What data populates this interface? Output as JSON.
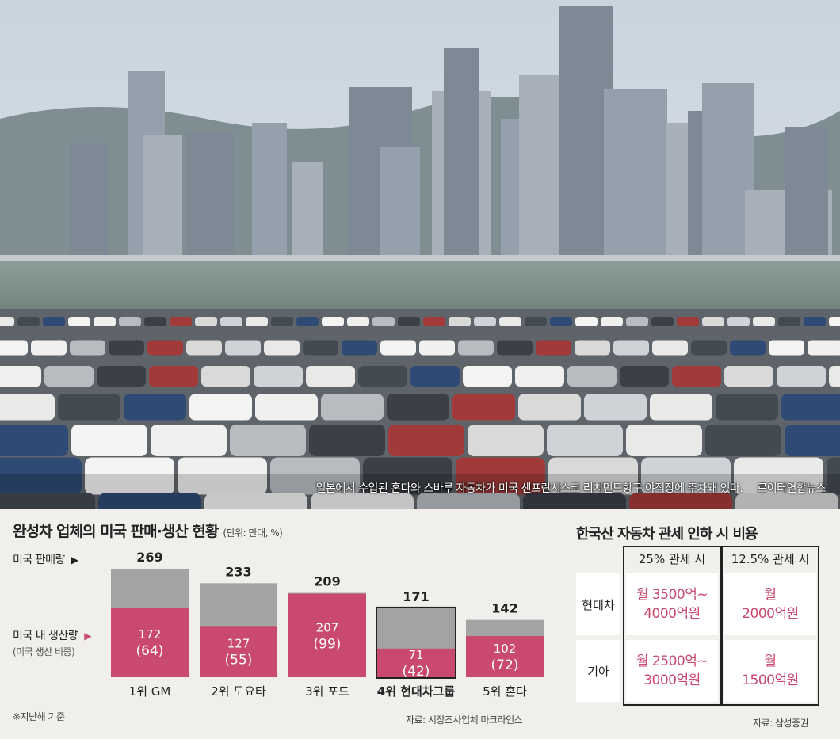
{
  "photo": {
    "caption": "일본에서 수입된 혼다와 스바루 자동차가 미국 샌프란시스코 리치먼드항구 야적장에 주차돼 있다.",
    "credit": "로이터연합뉴스"
  },
  "chart_data": {
    "type": "bar",
    "title": "완성차 업체의 미국 판매·생산 현황",
    "unit": "(단위: 만대, %)",
    "categories": [
      "1위 GM",
      "2위 도요타",
      "3위 포드",
      "4위 현대차그룹",
      "5위 혼다"
    ],
    "series": [
      {
        "name": "미국 판매량",
        "values": [
          269,
          233,
          209,
          171,
          142
        ]
      },
      {
        "name": "미국 내 생산량",
        "values": [
          172,
          127,
          207,
          71,
          102
        ]
      }
    ],
    "production_share": [
      64,
      55,
      99,
      42,
      72
    ],
    "share_labels": [
      "(64)",
      "(55)",
      "(99)",
      "(42)",
      "(72)"
    ],
    "ylim": [
      0,
      269
    ],
    "highlight": "4위 현대차그룹",
    "colors": {
      "sales": "#a3a3a3",
      "production": "#c9496f"
    }
  },
  "legend": {
    "sales_label": "미국 판매량",
    "production_label": "미국 내 생산량",
    "production_sub": "(미국 생산 비중)",
    "arrow": "▶"
  },
  "footnote": "※지난해 기준",
  "source_left": "자료: 시장조사업체 마크라인스",
  "table": {
    "title": "한국산 자동차 관세 인하 시 비용",
    "headers": [
      "25% 관세 시",
      "12.5% 관세 시"
    ],
    "rows": [
      {
        "company": "현대차",
        "tariff25": [
          "월 3500억~",
          "4000억원"
        ],
        "tariff12": [
          "월",
          "2000억원"
        ]
      },
      {
        "company": "기아",
        "tariff25": [
          "월 2500억~",
          "3000억원"
        ],
        "tariff12": [
          "월",
          "1500억원"
        ]
      }
    ],
    "source": "자료: 삼성증권"
  }
}
